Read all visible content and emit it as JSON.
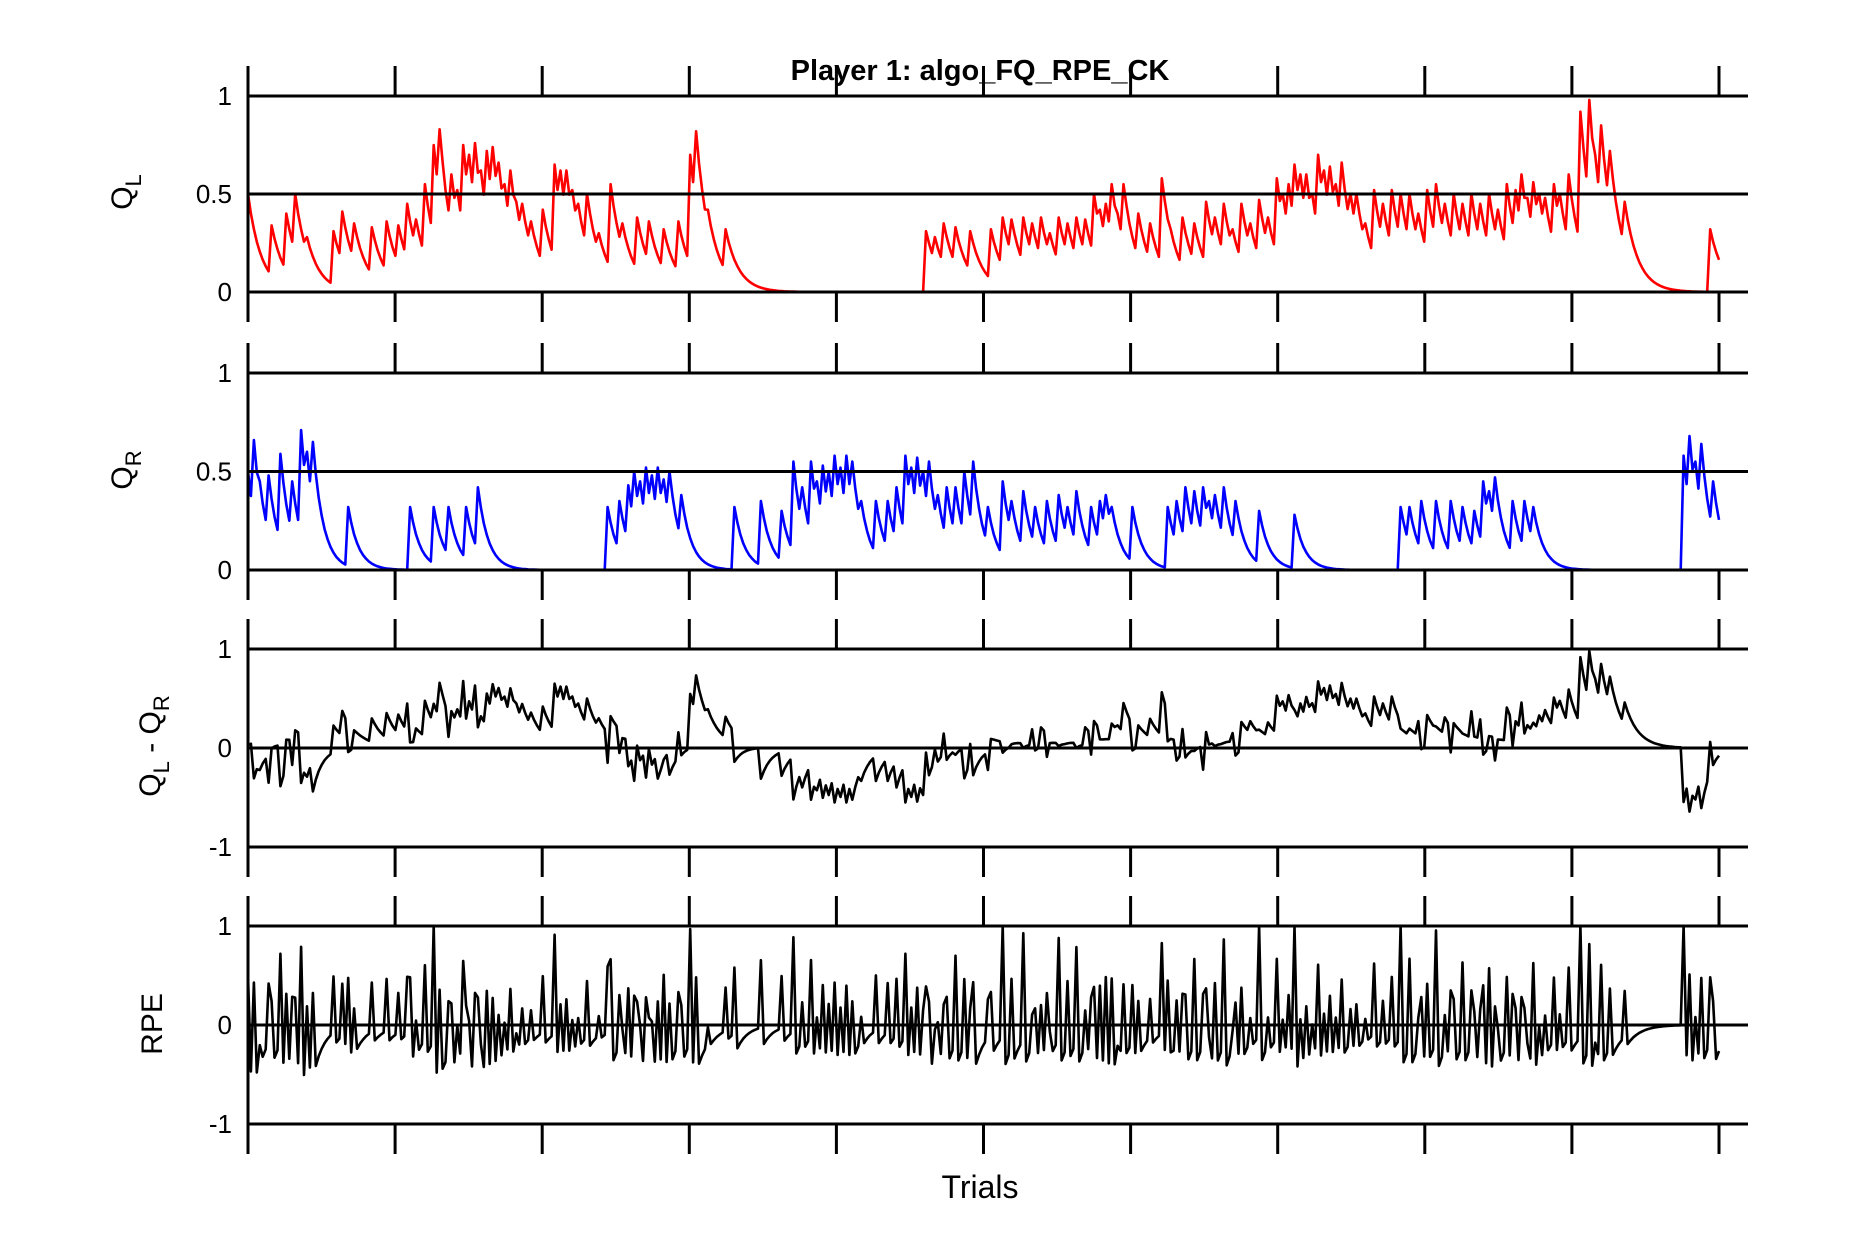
{
  "title": "Player 1: algo_FQ_RPE_CK",
  "xlabel": "Trials",
  "chart_data": [
    {
      "type": "line",
      "ylabel_main": "Q",
      "ylabel_sub": "L",
      "ylim": [
        0,
        1
      ],
      "yticks": [
        0,
        0.5,
        1
      ],
      "ytick_labels": [
        "0",
        "0.5",
        "1"
      ],
      "color": "#ff0000",
      "x_count": 500,
      "events": [
        {
          "x": 0,
          "v": 0.5
        },
        {
          "x": 8,
          "v": 0.34
        },
        {
          "x": 13,
          "v": 0.4
        },
        {
          "x": 16,
          "v": 0.5
        },
        {
          "x": 20,
          "v": 0.28
        },
        {
          "x": 29,
          "v": 0.31
        },
        {
          "x": 32,
          "v": 0.41
        },
        {
          "x": 36,
          "v": 0.35
        },
        {
          "x": 42,
          "v": 0.33
        },
        {
          "x": 47,
          "v": 0.36
        },
        {
          "x": 51,
          "v": 0.34
        },
        {
          "x": 54,
          "v": 0.45
        },
        {
          "x": 57,
          "v": 0.37
        },
        {
          "x": 60,
          "v": 0.55
        },
        {
          "x": 63,
          "v": 0.75
        },
        {
          "x": 65,
          "v": 0.83
        },
        {
          "x": 67,
          "v": 0.52
        },
        {
          "x": 69,
          "v": 0.6
        },
        {
          "x": 71,
          "v": 0.52
        },
        {
          "x": 73,
          "v": 0.75
        },
        {
          "x": 75,
          "v": 0.7
        },
        {
          "x": 77,
          "v": 0.76
        },
        {
          "x": 79,
          "v": 0.62
        },
        {
          "x": 81,
          "v": 0.72
        },
        {
          "x": 83,
          "v": 0.74
        },
        {
          "x": 85,
          "v": 0.66
        },
        {
          "x": 87,
          "v": 0.55
        },
        {
          "x": 89,
          "v": 0.62
        },
        {
          "x": 91,
          "v": 0.46
        },
        {
          "x": 93,
          "v": 0.45
        },
        {
          "x": 96,
          "v": 0.36
        },
        {
          "x": 100,
          "v": 0.42
        },
        {
          "x": 104,
          "v": 0.65
        },
        {
          "x": 106,
          "v": 0.62
        },
        {
          "x": 108,
          "v": 0.62
        },
        {
          "x": 110,
          "v": 0.52
        },
        {
          "x": 112,
          "v": 0.45
        },
        {
          "x": 115,
          "v": 0.5
        },
        {
          "x": 119,
          "v": 0.3
        },
        {
          "x": 123,
          "v": 0.55
        },
        {
          "x": 127,
          "v": 0.35
        },
        {
          "x": 132,
          "v": 0.38
        },
        {
          "x": 136,
          "v": 0.36
        },
        {
          "x": 141,
          "v": 0.32
        },
        {
          "x": 146,
          "v": 0.36
        },
        {
          "x": 150,
          "v": 0.7
        },
        {
          "x": 152,
          "v": 0.82
        },
        {
          "x": 156,
          "v": 0.42
        },
        {
          "x": 162,
          "v": 0.32
        },
        {
          "x": 230,
          "v": 0.31
        },
        {
          "x": 233,
          "v": 0.28
        },
        {
          "x": 236,
          "v": 0.35
        },
        {
          "x": 240,
          "v": 0.33
        },
        {
          "x": 245,
          "v": 0.31
        },
        {
          "x": 252,
          "v": 0.32
        },
        {
          "x": 256,
          "v": 0.38
        },
        {
          "x": 259,
          "v": 0.37
        },
        {
          "x": 263,
          "v": 0.38
        },
        {
          "x": 266,
          "v": 0.35
        },
        {
          "x": 269,
          "v": 0.38
        },
        {
          "x": 272,
          "v": 0.3
        },
        {
          "x": 275,
          "v": 0.38
        },
        {
          "x": 278,
          "v": 0.35
        },
        {
          "x": 281,
          "v": 0.38
        },
        {
          "x": 284,
          "v": 0.37
        },
        {
          "x": 287,
          "v": 0.5
        },
        {
          "x": 289,
          "v": 0.42
        },
        {
          "x": 291,
          "v": 0.45
        },
        {
          "x": 293,
          "v": 0.55
        },
        {
          "x": 295,
          "v": 0.4
        },
        {
          "x": 297,
          "v": 0.55
        },
        {
          "x": 299,
          "v": 0.35
        },
        {
          "x": 302,
          "v": 0.4
        },
        {
          "x": 306,
          "v": 0.35
        },
        {
          "x": 310,
          "v": 0.58
        },
        {
          "x": 313,
          "v": 0.32
        },
        {
          "x": 317,
          "v": 0.38
        },
        {
          "x": 321,
          "v": 0.35
        },
        {
          "x": 325,
          "v": 0.46
        },
        {
          "x": 328,
          "v": 0.38
        },
        {
          "x": 331,
          "v": 0.45
        },
        {
          "x": 334,
          "v": 0.32
        },
        {
          "x": 337,
          "v": 0.45
        },
        {
          "x": 340,
          "v": 0.35
        },
        {
          "x": 343,
          "v": 0.47
        },
        {
          "x": 346,
          "v": 0.38
        },
        {
          "x": 349,
          "v": 0.58
        },
        {
          "x": 351,
          "v": 0.5
        },
        {
          "x": 353,
          "v": 0.55
        },
        {
          "x": 355,
          "v": 0.65
        },
        {
          "x": 357,
          "v": 0.6
        },
        {
          "x": 359,
          "v": 0.6
        },
        {
          "x": 361,
          "v": 0.5
        },
        {
          "x": 363,
          "v": 0.7
        },
        {
          "x": 365,
          "v": 0.62
        },
        {
          "x": 367,
          "v": 0.64
        },
        {
          "x": 369,
          "v": 0.55
        },
        {
          "x": 371,
          "v": 0.66
        },
        {
          "x": 374,
          "v": 0.5
        },
        {
          "x": 376,
          "v": 0.5
        },
        {
          "x": 379,
          "v": 0.35
        },
        {
          "x": 382,
          "v": 0.52
        },
        {
          "x": 385,
          "v": 0.45
        },
        {
          "x": 388,
          "v": 0.52
        },
        {
          "x": 391,
          "v": 0.5
        },
        {
          "x": 394,
          "v": 0.5
        },
        {
          "x": 397,
          "v": 0.4
        },
        {
          "x": 400,
          "v": 0.52
        },
        {
          "x": 403,
          "v": 0.55
        },
        {
          "x": 406,
          "v": 0.45
        },
        {
          "x": 409,
          "v": 0.5
        },
        {
          "x": 412,
          "v": 0.45
        },
        {
          "x": 415,
          "v": 0.5
        },
        {
          "x": 418,
          "v": 0.45
        },
        {
          "x": 421,
          "v": 0.5
        },
        {
          "x": 424,
          "v": 0.42
        },
        {
          "x": 427,
          "v": 0.55
        },
        {
          "x": 430,
          "v": 0.52
        },
        {
          "x": 432,
          "v": 0.6
        },
        {
          "x": 434,
          "v": 0.48
        },
        {
          "x": 436,
          "v": 0.56
        },
        {
          "x": 438,
          "v": 0.5
        },
        {
          "x": 440,
          "v": 0.48
        },
        {
          "x": 443,
          "v": 0.55
        },
        {
          "x": 445,
          "v": 0.5
        },
        {
          "x": 448,
          "v": 0.6
        },
        {
          "x": 452,
          "v": 0.92
        },
        {
          "x": 455,
          "v": 0.98
        },
        {
          "x": 457,
          "v": 0.7
        },
        {
          "x": 459,
          "v": 0.85
        },
        {
          "x": 462,
          "v": 0.72
        },
        {
          "x": 467,
          "v": 0.46
        },
        {
          "x": 496,
          "v": 0.32
        }
      ]
    },
    {
      "type": "line",
      "ylabel_main": "Q",
      "ylabel_sub": "R",
      "ylim": [
        0,
        1
      ],
      "yticks": [
        0,
        0.5,
        1
      ],
      "ytick_labels": [
        "0",
        "0.5",
        "1"
      ],
      "color": "#0000ff",
      "x_count": 500,
      "events": [
        {
          "x": 0,
          "v": 0.5
        },
        {
          "x": 2,
          "v": 0.66
        },
        {
          "x": 4,
          "v": 0.45
        },
        {
          "x": 7,
          "v": 0.48
        },
        {
          "x": 11,
          "v": 0.59
        },
        {
          "x": 15,
          "v": 0.45
        },
        {
          "x": 18,
          "v": 0.71
        },
        {
          "x": 20,
          "v": 0.6
        },
        {
          "x": 22,
          "v": 0.65
        },
        {
          "x": 34,
          "v": 0.32
        },
        {
          "x": 55,
          "v": 0.32
        },
        {
          "x": 63,
          "v": 0.32
        },
        {
          "x": 68,
          "v": 0.32
        },
        {
          "x": 74,
          "v": 0.32
        },
        {
          "x": 78,
          "v": 0.42
        },
        {
          "x": 122,
          "v": 0.32
        },
        {
          "x": 126,
          "v": 0.35
        },
        {
          "x": 129,
          "v": 0.43
        },
        {
          "x": 131,
          "v": 0.5
        },
        {
          "x": 133,
          "v": 0.45
        },
        {
          "x": 135,
          "v": 0.52
        },
        {
          "x": 137,
          "v": 0.48
        },
        {
          "x": 139,
          "v": 0.52
        },
        {
          "x": 141,
          "v": 0.46
        },
        {
          "x": 143,
          "v": 0.5
        },
        {
          "x": 147,
          "v": 0.38
        },
        {
          "x": 165,
          "v": 0.32
        },
        {
          "x": 174,
          "v": 0.35
        },
        {
          "x": 181,
          "v": 0.3
        },
        {
          "x": 185,
          "v": 0.55
        },
        {
          "x": 188,
          "v": 0.42
        },
        {
          "x": 191,
          "v": 0.55
        },
        {
          "x": 193,
          "v": 0.45
        },
        {
          "x": 195,
          "v": 0.53
        },
        {
          "x": 197,
          "v": 0.5
        },
        {
          "x": 199,
          "v": 0.58
        },
        {
          "x": 201,
          "v": 0.52
        },
        {
          "x": 203,
          "v": 0.58
        },
        {
          "x": 205,
          "v": 0.55
        },
        {
          "x": 208,
          "v": 0.35
        },
        {
          "x": 213,
          "v": 0.35
        },
        {
          "x": 217,
          "v": 0.35
        },
        {
          "x": 220,
          "v": 0.42
        },
        {
          "x": 223,
          "v": 0.58
        },
        {
          "x": 225,
          "v": 0.52
        },
        {
          "x": 227,
          "v": 0.57
        },
        {
          "x": 229,
          "v": 0.5
        },
        {
          "x": 231,
          "v": 0.55
        },
        {
          "x": 234,
          "v": 0.38
        },
        {
          "x": 237,
          "v": 0.42
        },
        {
          "x": 240,
          "v": 0.42
        },
        {
          "x": 243,
          "v": 0.5
        },
        {
          "x": 246,
          "v": 0.55
        },
        {
          "x": 251,
          "v": 0.32
        },
        {
          "x": 256,
          "v": 0.45
        },
        {
          "x": 259,
          "v": 0.35
        },
        {
          "x": 263,
          "v": 0.4
        },
        {
          "x": 267,
          "v": 0.32
        },
        {
          "x": 271,
          "v": 0.35
        },
        {
          "x": 275,
          "v": 0.38
        },
        {
          "x": 278,
          "v": 0.32
        },
        {
          "x": 281,
          "v": 0.4
        },
        {
          "x": 286,
          "v": 0.32
        },
        {
          "x": 289,
          "v": 0.35
        },
        {
          "x": 291,
          "v": 0.38
        },
        {
          "x": 293,
          "v": 0.32
        },
        {
          "x": 300,
          "v": 0.32
        },
        {
          "x": 312,
          "v": 0.32
        },
        {
          "x": 315,
          "v": 0.35
        },
        {
          "x": 318,
          "v": 0.42
        },
        {
          "x": 321,
          "v": 0.4
        },
        {
          "x": 324,
          "v": 0.42
        },
        {
          "x": 326,
          "v": 0.35
        },
        {
          "x": 328,
          "v": 0.38
        },
        {
          "x": 331,
          "v": 0.42
        },
        {
          "x": 335,
          "v": 0.35
        },
        {
          "x": 343,
          "v": 0.3
        },
        {
          "x": 355,
          "v": 0.28
        },
        {
          "x": 391,
          "v": 0.32
        },
        {
          "x": 394,
          "v": 0.32
        },
        {
          "x": 398,
          "v": 0.35
        },
        {
          "x": 403,
          "v": 0.35
        },
        {
          "x": 408,
          "v": 0.35
        },
        {
          "x": 412,
          "v": 0.32
        },
        {
          "x": 416,
          "v": 0.3
        },
        {
          "x": 419,
          "v": 0.45
        },
        {
          "x": 421,
          "v": 0.4
        },
        {
          "x": 423,
          "v": 0.47
        },
        {
          "x": 429,
          "v": 0.35
        },
        {
          "x": 433,
          "v": 0.35
        },
        {
          "x": 436,
          "v": 0.32
        },
        {
          "x": 487,
          "v": 0.58
        },
        {
          "x": 489,
          "v": 0.68
        },
        {
          "x": 491,
          "v": 0.55
        },
        {
          "x": 493,
          "v": 0.64
        },
        {
          "x": 497,
          "v": 0.45
        }
      ]
    },
    {
      "type": "line",
      "ylabel_main": "Q",
      "ylabel_sub": "L",
      "ylabel_main2": " - Q",
      "ylabel_sub2": "R",
      "ylim": [
        -1,
        1
      ],
      "yticks": [
        -1,
        0,
        1
      ],
      "ytick_labels": [
        "-1",
        "0",
        "1"
      ],
      "color": "#000000",
      "x_count": 500,
      "derived": "QL_minus_QR"
    },
    {
      "type": "line",
      "ylabel_main": "RPE",
      "ylim": [
        -1,
        1
      ],
      "yticks": [
        -1,
        0,
        1
      ],
      "ytick_labels": [
        "-1",
        "0",
        "1"
      ],
      "color": "#000000",
      "x_count": 500,
      "derived": "RPE"
    }
  ]
}
